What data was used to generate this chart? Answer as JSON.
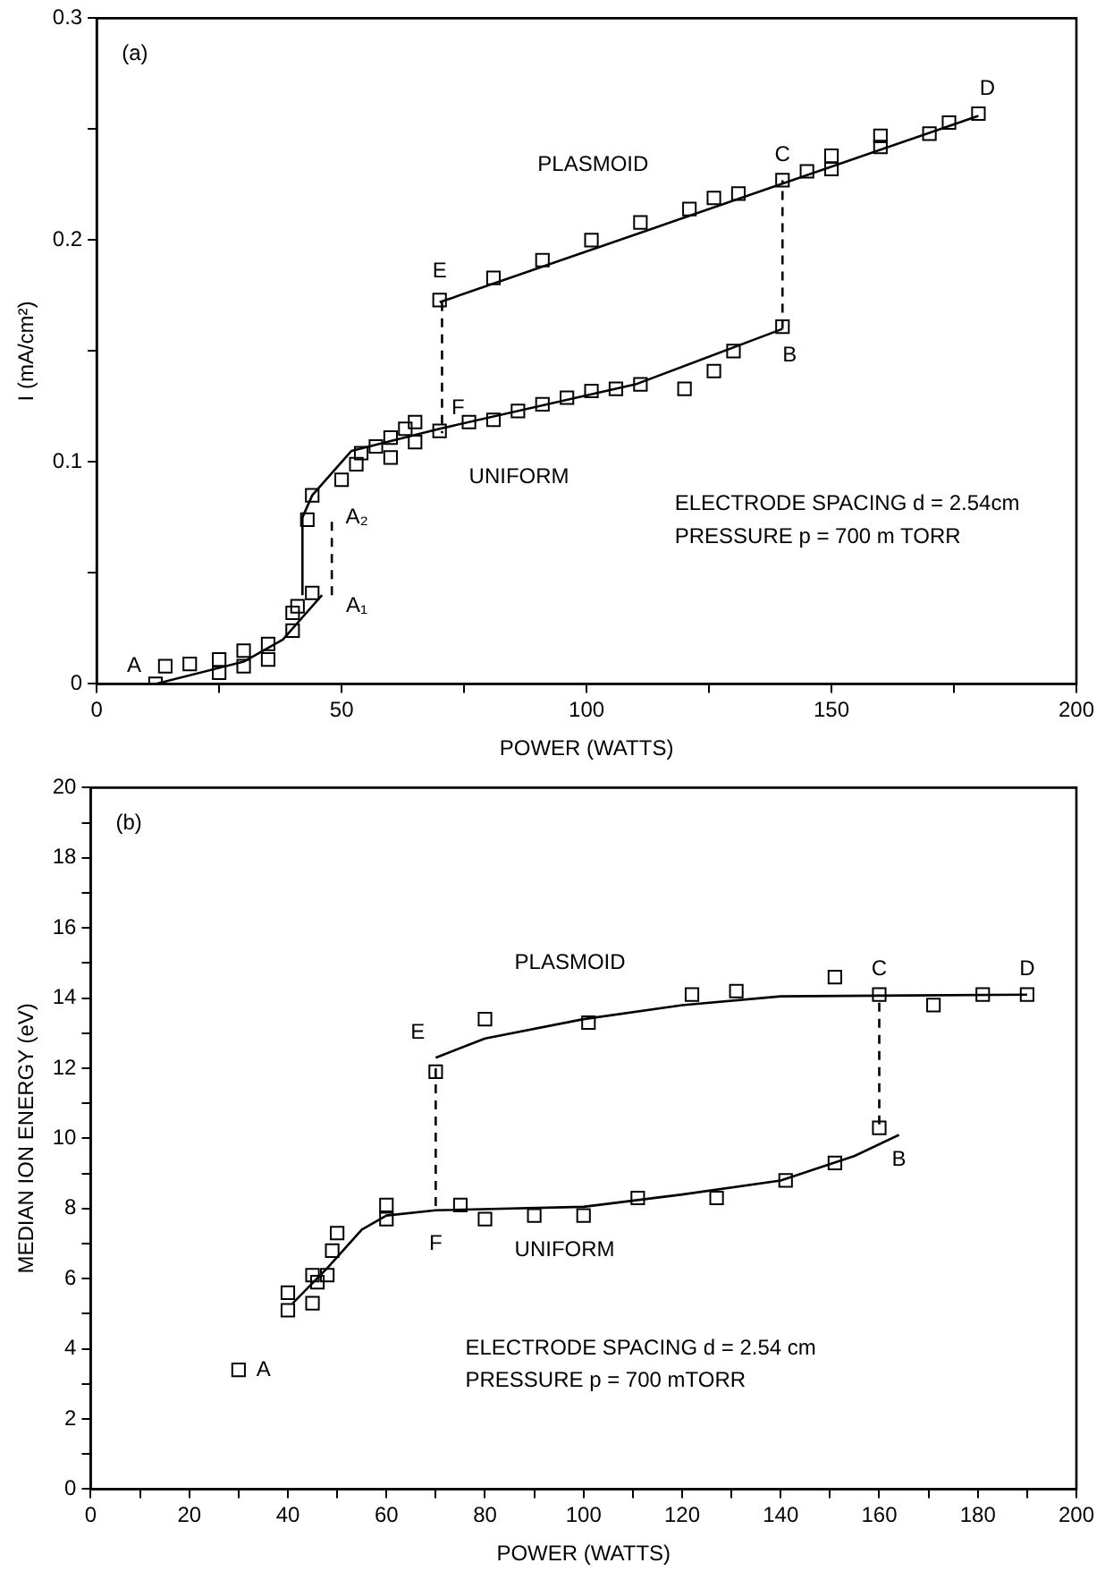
{
  "chart_data": [
    {
      "type": "scatter",
      "title": "(a)",
      "xlabel": "POWER (WATTS)",
      "ylabel": "I (mA/cm²)",
      "xlim": [
        0,
        200
      ],
      "ylim": [
        0,
        0.3
      ],
      "xticks": [
        0,
        {
          "value": 25,
          "label": null
        },
        50,
        {
          "value": 75,
          "label": null
        },
        100,
        {
          "value": 125,
          "label": null
        },
        150,
        {
          "value": 175,
          "label": null
        },
        200
      ],
      "yticks": [
        0,
        {
          "value": 0.05,
          "label": null
        },
        {
          "value": 0.1,
          "label": "0.1"
        },
        {
          "value": 0.15,
          "label": null
        },
        {
          "value": 0.2,
          "label": "0.2"
        },
        {
          "value": 0.25,
          "label": null
        },
        {
          "value": 0.3,
          "label": "0.3"
        }
      ],
      "grid": false,
      "legend": false,
      "marker": "square",
      "series": [
        {
          "type": "scatter",
          "color": "#000000",
          "x": [
            70,
            81,
            91,
            101,
            111,
            121,
            126,
            131,
            140,
            145,
            150,
            150,
            160,
            160,
            170,
            174,
            180
          ],
          "values": [
            0.173,
            0.183,
            0.191,
            0.2,
            0.208,
            0.214,
            0.219,
            0.221,
            0.227,
            0.231,
            0.232,
            0.238,
            0.242,
            0.247,
            0.248,
            0.253,
            0.257
          ]
        },
        {
          "type": "scatter",
          "color": "#000000",
          "x": [
            12,
            14,
            19,
            25,
            25,
            30,
            30,
            35,
            35,
            40,
            40,
            41,
            44,
            43,
            44,
            50,
            53,
            54,
            57,
            60,
            60,
            63,
            65,
            65,
            70,
            76,
            81,
            86,
            91,
            96,
            101,
            106,
            111,
            120,
            126,
            130,
            140
          ],
          "values": [
            0,
            0.008,
            0.009,
            0.011,
            0.005,
            0.015,
            0.008,
            0.018,
            0.011,
            0.024,
            0.032,
            0.035,
            0.041,
            0.074,
            0.085,
            0.092,
            0.099,
            0.104,
            0.107,
            0.102,
            0.111,
            0.115,
            0.118,
            0.109,
            0.114,
            0.118,
            0.119,
            0.123,
            0.126,
            0.129,
            0.132,
            0.133,
            0.135,
            0.133,
            0.141,
            0.15,
            0.161
          ]
        },
        {
          "type": "line",
          "marker": "none",
          "color": "#000000",
          "x": [
            70,
            180
          ],
          "values": [
            0.172,
            0.256
          ]
        },
        {
          "type": "line",
          "marker": "none",
          "color": "#000000",
          "x": [
            12,
            30,
            38,
            42,
            46
          ],
          "values": [
            0,
            0.01,
            0.02,
            0.03,
            0.04
          ]
        },
        {
          "type": "line",
          "marker": "none",
          "color": "#000000",
          "x": [
            42,
            42,
            44,
            52,
            70,
            110,
            140
          ],
          "values": [
            0.04,
            0.075,
            0.085,
            0.105,
            0.115,
            0.135,
            0.16
          ]
        },
        {
          "type": "line",
          "marker": "none",
          "line_style": "dashed",
          "color": "#000000",
          "x": [
            70.5,
            70.5
          ],
          "values": [
            0.172,
            0.113
          ]
        },
        {
          "type": "line",
          "marker": "none",
          "line_style": "dashed",
          "color": "#000000",
          "x": [
            140,
            140
          ],
          "values": [
            0.16,
            0.227
          ]
        },
        {
          "type": "line",
          "marker": "none",
          "line_style": "dashed",
          "color": "#000000",
          "x": [
            48,
            48
          ],
          "values": [
            0.04,
            0.075
          ]
        }
      ],
      "annotations": [
        {
          "text": "A",
          "x": 12,
          "y": 0
        },
        {
          "text": "A₂",
          "x": 48,
          "y": 0.075
        },
        {
          "text": "A₁",
          "x": 48,
          "y": 0.04
        },
        {
          "text": "B",
          "x": 140,
          "y": 0.16
        },
        {
          "text": "C",
          "x": 140,
          "y": 0.227
        },
        {
          "text": "D",
          "x": 180,
          "y": 0.257
        },
        {
          "text": "E",
          "x": 70,
          "y": 0.173
        },
        {
          "text": "F",
          "x": 70.5,
          "y": 0.113
        },
        "PLASMOID",
        "UNIFORM",
        "ELECTRODE SPACING d = 2.54cm",
        "PRESSURE p = 700 m TORR"
      ]
    },
    {
      "type": "scatter",
      "title": "(b)",
      "xlabel": "POWER (WATTS)",
      "ylabel": "MEDIAN ION ENERGY (eV)",
      "xlim": [
        0,
        200
      ],
      "ylim": [
        0,
        20
      ],
      "xticks": [
        0,
        {
          "value": 10,
          "label": null
        },
        20,
        {
          "value": 30,
          "label": null
        },
        40,
        {
          "value": 50,
          "label": null
        },
        60,
        {
          "value": 70,
          "label": null
        },
        80,
        {
          "value": 90,
          "label": null
        },
        100,
        {
          "value": 110,
          "label": null
        },
        120,
        {
          "value": 130,
          "label": null
        },
        140,
        {
          "value": 150,
          "label": null
        },
        160,
        {
          "value": 170,
          "label": null
        },
        180,
        {
          "value": 190,
          "label": null
        },
        200
      ],
      "yticks": [
        0,
        {
          "value": 1,
          "label": null
        },
        2,
        {
          "value": 3,
          "label": null
        },
        4,
        {
          "value": 5,
          "label": null
        },
        6,
        {
          "value": 7,
          "label": null
        },
        8,
        {
          "value": 9,
          "label": null
        },
        10,
        {
          "value": 11,
          "label": null
        },
        12,
        {
          "value": 13,
          "label": null
        },
        14,
        {
          "value": 15,
          "label": null
        },
        16,
        {
          "value": 17,
          "label": null
        },
        18,
        {
          "value": 19,
          "label": null
        },
        20
      ],
      "grid": false,
      "legend": false,
      "marker": "square",
      "series": [
        {
          "type": "scatter",
          "color": "#000000",
          "x": [
            70,
            80,
            101,
            122,
            131,
            151,
            160,
            171,
            181,
            190
          ],
          "values": [
            11.9,
            13.4,
            13.3,
            14.1,
            14.2,
            14.6,
            14.1,
            13.8,
            14.1,
            14.1
          ]
        },
        {
          "type": "scatter",
          "color": "#000000",
          "x": [
            30,
            40,
            40,
            45,
            45,
            46,
            48,
            49,
            50,
            60,
            60,
            75,
            80,
            90,
            100,
            111,
            127,
            141,
            151,
            160
          ],
          "values": [
            3.4,
            5.6,
            5.1,
            6.1,
            5.3,
            5.9,
            6.1,
            6.8,
            7.3,
            8.1,
            7.7,
            8.1,
            7.7,
            7.8,
            7.8,
            8.3,
            8.3,
            8.8,
            9.3,
            10.3
          ]
        },
        {
          "type": "line",
          "marker": "none",
          "color": "#000000",
          "x": [
            70,
            80,
            100,
            120,
            140,
            190
          ],
          "values": [
            12.3,
            12.85,
            13.4,
            13.8,
            14.05,
            14.1
          ]
        },
        {
          "type": "line",
          "marker": "none",
          "color": "#000000",
          "x": [
            41,
            48,
            55,
            60,
            70,
            100,
            120,
            140,
            155,
            164
          ],
          "values": [
            5.3,
            6.3,
            7.4,
            7.8,
            7.95,
            8.05,
            8.4,
            8.8,
            9.5,
            10.1
          ]
        },
        {
          "type": "line",
          "marker": "none",
          "line_style": "dashed",
          "color": "#000000",
          "x": [
            70,
            70
          ],
          "values": [
            12,
            7.9
          ]
        },
        {
          "type": "line",
          "marker": "none",
          "line_style": "dashed",
          "color": "#000000",
          "x": [
            160,
            160
          ],
          "values": [
            10.4,
            14.1
          ]
        }
      ],
      "annotations": [
        {
          "text": "A",
          "x": 30,
          "y": 3.4
        },
        {
          "text": "B",
          "x": 164,
          "y": 10.1
        },
        {
          "text": "C",
          "x": 160,
          "y": 14.1
        },
        {
          "text": "D",
          "x": 190,
          "y": 14.1
        },
        {
          "text": "E",
          "x": 70,
          "y": 12.3
        },
        {
          "text": "F",
          "x": 70,
          "y": 7.9
        },
        "PLASMOID",
        "UNIFORM",
        "ELECTRODE SPACING d = 2.54 cm",
        "PRESSURE p = 700 mTORR"
      ]
    }
  ]
}
